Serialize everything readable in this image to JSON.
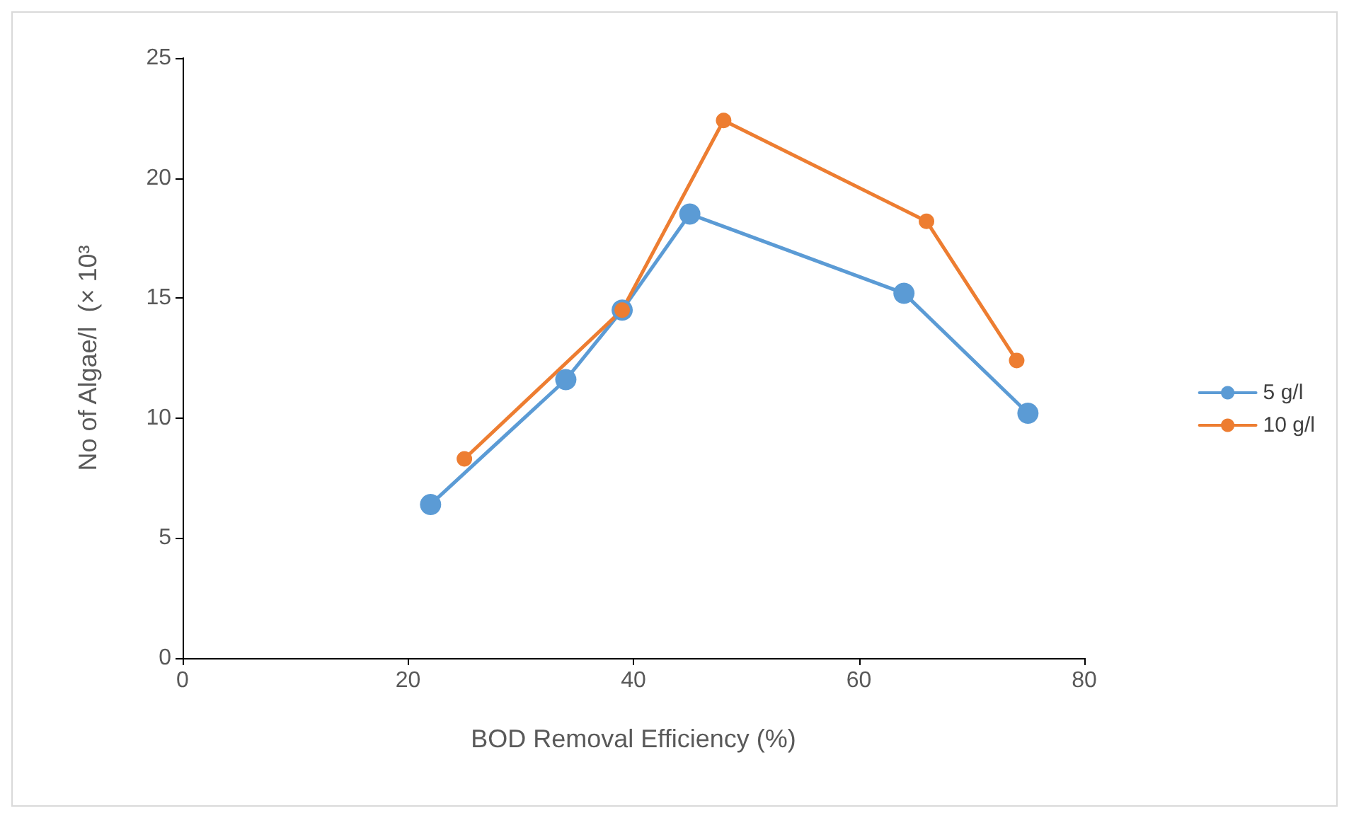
{
  "chart_data": {
    "type": "line",
    "xlabel": "BOD Removal Efficiency (%)",
    "ylabel": "No of Algae/l  (× 10³",
    "xlim": [
      0,
      80
    ],
    "xticks": [
      0,
      20,
      40,
      60,
      80
    ],
    "ylim": [
      0,
      25
    ],
    "yticks": [
      0,
      5,
      10,
      15,
      20,
      25
    ],
    "grid": false,
    "legend": "right",
    "marker": "circle",
    "line_style": "solid",
    "series": [
      {
        "name": "5 g/l",
        "color": "#5b9bd5",
        "x": [
          22,
          34,
          39,
          45,
          64,
          75
        ],
        "values": [
          6.4,
          11.6,
          14.5,
          18.5,
          15.2,
          10.2
        ]
      },
      {
        "name": "10 g/l",
        "color": "#ed7d31",
        "x": [
          25,
          39,
          48,
          66,
          74
        ],
        "values": [
          8.3,
          14.5,
          22.4,
          18.2,
          12.4
        ]
      }
    ]
  }
}
